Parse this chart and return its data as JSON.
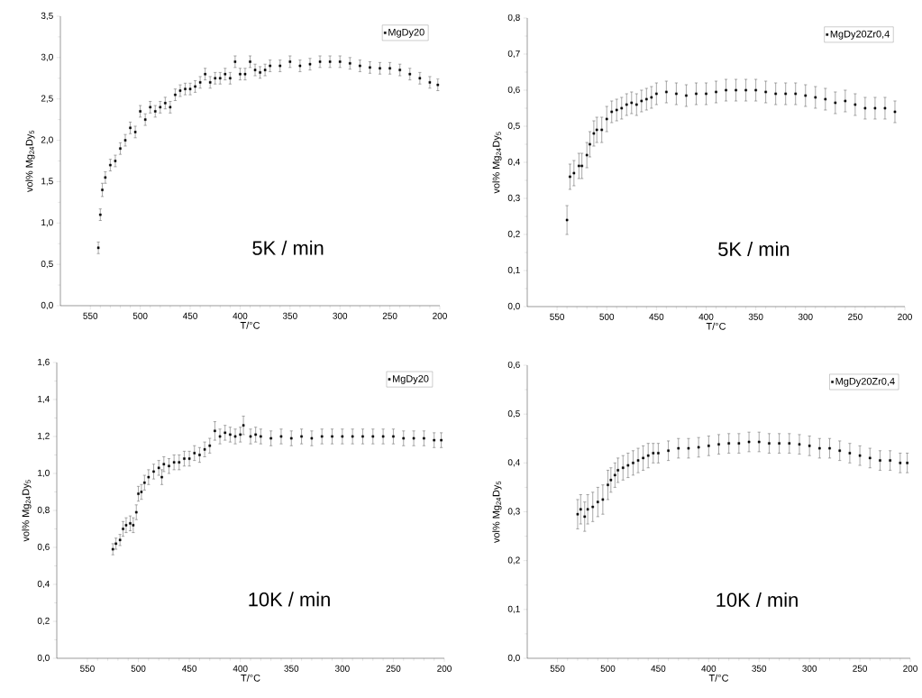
{
  "chart_data": [
    {
      "type": "scatter",
      "xlabel": "T/°C",
      "ylabel": "vol% Mg$_{24}$Dy$_{5}$",
      "annotations": [
        "5K / min"
      ],
      "marker": "square",
      "legend": "top right",
      "xlim": [
        580,
        200
      ],
      "ylim": [
        0,
        3.5
      ],
      "xticks": [
        550,
        500,
        450,
        400,
        350,
        300,
        250,
        200
      ],
      "yticks": [
        {
          "value": 0,
          "label": "0,0"
        },
        {
          "value": 0.5,
          "label": "0,5"
        },
        {
          "value": 1,
          "label": "1,0"
        },
        {
          "value": 1.5,
          "label": "1,5"
        },
        {
          "value": 2,
          "label": "2,0"
        },
        {
          "value": 2.5,
          "label": "2,5"
        },
        {
          "value": 3,
          "label": "3,0"
        },
        {
          "value": 3.5,
          "label": "3,5"
        }
      ],
      "x": [
        542,
        540,
        538,
        535,
        530,
        525,
        520,
        515,
        510,
        505,
        500,
        495,
        490,
        485,
        480,
        475,
        470,
        465,
        460,
        455,
        450,
        445,
        440,
        435,
        430,
        425,
        420,
        415,
        410,
        405,
        400,
        395,
        390,
        385,
        380,
        375,
        370,
        360,
        350,
        340,
        330,
        320,
        310,
        300,
        290,
        280,
        270,
        260,
        250,
        240,
        230,
        220,
        210,
        202
      ],
      "series": [
        {
          "name": "MgDy20",
          "color": "#000000",
          "values": [
            0.7,
            1.1,
            1.4,
            1.55,
            1.7,
            1.75,
            1.9,
            2.0,
            2.15,
            2.1,
            2.35,
            2.25,
            2.4,
            2.35,
            2.4,
            2.45,
            2.4,
            2.55,
            2.6,
            2.62,
            2.62,
            2.65,
            2.7,
            2.8,
            2.7,
            2.75,
            2.75,
            2.8,
            2.75,
            2.95,
            2.8,
            2.8,
            2.95,
            2.85,
            2.82,
            2.85,
            2.9,
            2.9,
            2.95,
            2.9,
            2.92,
            2.95,
            2.95,
            2.95,
            2.93,
            2.9,
            2.88,
            2.87,
            2.87,
            2.85,
            2.8,
            2.75,
            2.7,
            2.67
          ],
          "errors": [
            0.07,
            0.07,
            0.08,
            0.07,
            0.07,
            0.07,
            0.07,
            0.07,
            0.07,
            0.07,
            0.07,
            0.07,
            0.07,
            0.07,
            0.07,
            0.07,
            0.07,
            0.07,
            0.07,
            0.07,
            0.07,
            0.07,
            0.07,
            0.07,
            0.07,
            0.07,
            0.07,
            0.07,
            0.07,
            0.07,
            0.07,
            0.07,
            0.07,
            0.07,
            0.07,
            0.07,
            0.07,
            0.07,
            0.07,
            0.07,
            0.07,
            0.07,
            0.07,
            0.07,
            0.07,
            0.07,
            0.07,
            0.07,
            0.07,
            0.07,
            0.07,
            0.07,
            0.07,
            0.07
          ]
        }
      ]
    },
    {
      "type": "scatter",
      "xlabel": "T/°C",
      "ylabel": "vol% Mg$_{24}$Dy$_{5}$",
      "annotations": [
        "5K / min"
      ],
      "marker": "square",
      "legend": "top right",
      "xlim": [
        580,
        200
      ],
      "ylim": [
        0,
        0.8
      ],
      "xticks": [
        550,
        500,
        450,
        400,
        350,
        300,
        250,
        200
      ],
      "yticks": [
        {
          "value": 0,
          "label": "0,0"
        },
        {
          "value": 0.1,
          "label": "0,1"
        },
        {
          "value": 0.2,
          "label": "0,2"
        },
        {
          "value": 0.3,
          "label": "0,3"
        },
        {
          "value": 0.4,
          "label": "0,4"
        },
        {
          "value": 0.5,
          "label": "0,5"
        },
        {
          "value": 0.6,
          "label": "0,6"
        },
        {
          "value": 0.7,
          "label": "0,7"
        },
        {
          "value": 0.8,
          "label": "0,8"
        }
      ],
      "x": [
        540,
        537,
        533,
        528,
        525,
        520,
        517,
        513,
        510,
        505,
        500,
        495,
        490,
        485,
        480,
        475,
        470,
        465,
        460,
        455,
        450,
        440,
        430,
        420,
        410,
        400,
        390,
        380,
        370,
        360,
        350,
        340,
        330,
        320,
        310,
        300,
        290,
        280,
        270,
        260,
        250,
        240,
        230,
        220,
        210
      ],
      "series": [
        {
          "name": "MgDy20Zr0,4",
          "color": "#000000",
          "values": [
            0.24,
            0.36,
            0.37,
            0.39,
            0.39,
            0.42,
            0.45,
            0.48,
            0.49,
            0.49,
            0.52,
            0.54,
            0.545,
            0.55,
            0.56,
            0.565,
            0.56,
            0.57,
            0.575,
            0.58,
            0.59,
            0.595,
            0.59,
            0.585,
            0.59,
            0.59,
            0.595,
            0.6,
            0.6,
            0.6,
            0.6,
            0.595,
            0.59,
            0.59,
            0.59,
            0.585,
            0.58,
            0.575,
            0.565,
            0.57,
            0.56,
            0.55,
            0.55,
            0.55,
            0.54
          ],
          "errors": [
            0.04,
            0.035,
            0.035,
            0.035,
            0.035,
            0.035,
            0.035,
            0.035,
            0.035,
            0.035,
            0.035,
            0.03,
            0.03,
            0.03,
            0.03,
            0.03,
            0.03,
            0.03,
            0.03,
            0.03,
            0.03,
            0.03,
            0.03,
            0.03,
            0.03,
            0.03,
            0.03,
            0.03,
            0.03,
            0.03,
            0.03,
            0.03,
            0.03,
            0.03,
            0.03,
            0.03,
            0.03,
            0.03,
            0.03,
            0.03,
            0.03,
            0.03,
            0.03,
            0.03,
            0.03
          ]
        }
      ]
    },
    {
      "type": "scatter",
      "xlabel": "T/°C",
      "ylabel": "vol% Mg$_{24}$Dy$_{5}$",
      "annotations": [
        "10K / min"
      ],
      "marker": "square",
      "legend": "top right",
      "xlim": [
        580,
        200
      ],
      "ylim": [
        0,
        1.6
      ],
      "xticks": [
        550,
        500,
        450,
        400,
        350,
        300,
        250,
        200
      ],
      "yticks": [
        {
          "value": 0,
          "label": "0,0"
        },
        {
          "value": 0.2,
          "label": "0,2"
        },
        {
          "value": 0.4,
          "label": "0,4"
        },
        {
          "value": 0.6,
          "label": "0,6"
        },
        {
          "value": 0.8,
          "label": "0,8"
        },
        {
          "value": 1,
          "label": "1,0"
        },
        {
          "value": 1.2,
          "label": "1,2"
        },
        {
          "value": 1.4,
          "label": "1,4"
        },
        {
          "value": 1.6,
          "label": "1,6"
        }
      ],
      "x": [
        525,
        522,
        518,
        515,
        512,
        508,
        505,
        502,
        500,
        497,
        494,
        490,
        485,
        480,
        477,
        475,
        470,
        465,
        460,
        455,
        450,
        445,
        440,
        435,
        430,
        425,
        420,
        415,
        410,
        405,
        400,
        397,
        390,
        385,
        380,
        370,
        360,
        350,
        340,
        330,
        320,
        310,
        300,
        290,
        280,
        270,
        260,
        250,
        240,
        230,
        220,
        210,
        203
      ],
      "series": [
        {
          "name": "MgDy20",
          "color": "#000000",
          "values": [
            0.59,
            0.62,
            0.64,
            0.7,
            0.72,
            0.73,
            0.72,
            0.79,
            0.89,
            0.9,
            0.95,
            0.98,
            1.01,
            1.03,
            0.98,
            1.05,
            1.04,
            1.06,
            1.06,
            1.08,
            1.08,
            1.11,
            1.1,
            1.13,
            1.15,
            1.23,
            1.2,
            1.22,
            1.21,
            1.2,
            1.21,
            1.26,
            1.2,
            1.21,
            1.2,
            1.19,
            1.2,
            1.19,
            1.2,
            1.19,
            1.2,
            1.2,
            1.2,
            1.2,
            1.2,
            1.2,
            1.2,
            1.2,
            1.19,
            1.19,
            1.19,
            1.18,
            1.18
          ],
          "errors": [
            0.03,
            0.03,
            0.03,
            0.04,
            0.04,
            0.04,
            0.04,
            0.04,
            0.04,
            0.04,
            0.04,
            0.04,
            0.04,
            0.04,
            0.04,
            0.04,
            0.04,
            0.04,
            0.04,
            0.04,
            0.04,
            0.04,
            0.04,
            0.04,
            0.04,
            0.05,
            0.04,
            0.04,
            0.04,
            0.04,
            0.04,
            0.05,
            0.04,
            0.04,
            0.04,
            0.04,
            0.04,
            0.04,
            0.04,
            0.04,
            0.04,
            0.04,
            0.04,
            0.04,
            0.04,
            0.04,
            0.04,
            0.04,
            0.04,
            0.04,
            0.04,
            0.04,
            0.04
          ]
        }
      ]
    },
    {
      "type": "scatter",
      "xlabel": "T/°C",
      "ylabel": "vol% Mg$_{24}$Dy$_{5}$",
      "annotations": [
        "10K / min"
      ],
      "marker": "square",
      "legend": "top right",
      "xlim": [
        580,
        200
      ],
      "ylim": [
        0,
        0.6
      ],
      "xticks": [
        550,
        500,
        450,
        400,
        350,
        300,
        250,
        200
      ],
      "yticks": [
        {
          "value": 0,
          "label": "0,0"
        },
        {
          "value": 0.1,
          "label": "0,1"
        },
        {
          "value": 0.2,
          "label": "0,2"
        },
        {
          "value": 0.3,
          "label": "0,3"
        },
        {
          "value": 0.4,
          "label": "0,4"
        },
        {
          "value": 0.5,
          "label": "0,5"
        },
        {
          "value": 0.6,
          "label": "0,6"
        }
      ],
      "x": [
        530,
        527,
        523,
        520,
        515,
        510,
        505,
        500,
        497,
        493,
        490,
        485,
        480,
        475,
        470,
        465,
        460,
        455,
        450,
        440,
        430,
        420,
        410,
        400,
        390,
        380,
        370,
        360,
        350,
        340,
        330,
        320,
        310,
        300,
        290,
        280,
        270,
        260,
        250,
        240,
        230,
        220,
        210,
        203
      ],
      "series": [
        {
          "name": "MgDy20Zr0,4",
          "color": "#000000",
          "values": [
            0.295,
            0.305,
            0.29,
            0.305,
            0.31,
            0.32,
            0.325,
            0.355,
            0.365,
            0.375,
            0.385,
            0.39,
            0.395,
            0.4,
            0.405,
            0.41,
            0.415,
            0.42,
            0.42,
            0.425,
            0.43,
            0.43,
            0.432,
            0.435,
            0.438,
            0.44,
            0.44,
            0.443,
            0.443,
            0.44,
            0.44,
            0.44,
            0.438,
            0.435,
            0.43,
            0.43,
            0.425,
            0.42,
            0.415,
            0.41,
            0.405,
            0.405,
            0.4,
            0.4
          ],
          "errors": [
            0.03,
            0.03,
            0.03,
            0.03,
            0.03,
            0.03,
            0.03,
            0.03,
            0.025,
            0.025,
            0.025,
            0.025,
            0.025,
            0.025,
            0.025,
            0.025,
            0.025,
            0.02,
            0.02,
            0.02,
            0.02,
            0.02,
            0.02,
            0.02,
            0.02,
            0.02,
            0.02,
            0.02,
            0.02,
            0.02,
            0.02,
            0.02,
            0.02,
            0.02,
            0.02,
            0.02,
            0.02,
            0.02,
            0.02,
            0.02,
            0.02,
            0.02,
            0.02,
            0.02
          ]
        }
      ]
    }
  ]
}
